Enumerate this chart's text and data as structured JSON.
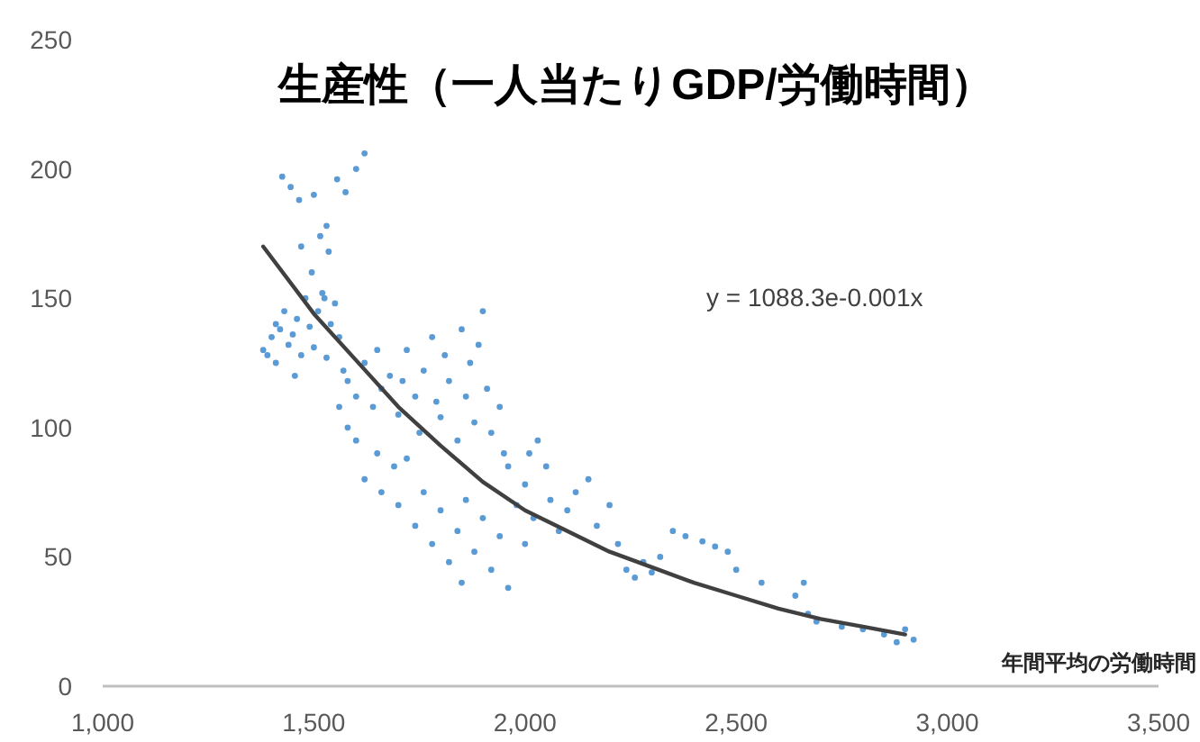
{
  "chart_data": {
    "type": "scatter",
    "title": "生産性（一人当たりGDP/労働時間）",
    "xlabel": "年間平均の労働時間",
    "annotations": [
      "y = 1088.3e-0.001x"
    ],
    "xlim": [
      1000,
      3500
    ],
    "xticks": [
      {
        "value": 1000,
        "label": "1,000"
      },
      {
        "value": 1500,
        "label": "1,500"
      },
      {
        "value": 2000,
        "label": "2,000"
      },
      {
        "value": 2500,
        "label": "2,500"
      },
      {
        "value": 3000,
        "label": "3,000"
      },
      {
        "value": 3500,
        "label": "3,500"
      }
    ],
    "ylim": [
      0,
      250
    ],
    "yticks": [
      0,
      50,
      100,
      150,
      200,
      250
    ],
    "grid": false,
    "series": [
      {
        "marker": "circle",
        "color": "#5b9bd5",
        "x": [
          1380,
          1390,
          1400,
          1410,
          1420,
          1430,
          1440,
          1450,
          1460,
          1470,
          1480,
          1490,
          1500,
          1510,
          1520,
          1530,
          1540,
          1550,
          1560,
          1570,
          1425,
          1445,
          1465,
          1500,
          1530,
          1555,
          1575,
          1600,
          1620,
          1470,
          1495,
          1515,
          1535,
          1525,
          1455,
          1410,
          1580,
          1600,
          1620,
          1640,
          1650,
          1660,
          1680,
          1700,
          1710,
          1720,
          1740,
          1750,
          1760,
          1780,
          1790,
          1800,
          1810,
          1820,
          1840,
          1850,
          1860,
          1870,
          1880,
          1890,
          1900,
          1910,
          1920,
          1940,
          1950,
          1960,
          1600,
          1620,
          1650,
          1660,
          1690,
          1700,
          1720,
          1740,
          1760,
          1780,
          1800,
          1820,
          1840,
          1850,
          1860,
          1880,
          1900,
          1920,
          1940,
          1960,
          1980,
          2000,
          2000,
          2020,
          2050,
          2060,
          2080,
          2100,
          2120,
          2150,
          2170,
          2200,
          2220,
          2240,
          2260,
          2280,
          2300,
          2320,
          2350,
          2380,
          2420,
          2450,
          2480,
          2500,
          2560,
          2640,
          2660,
          2670,
          2690,
          2750,
          2800,
          2850,
          2880,
          2900,
          2920,
          2010,
          2030,
          1560,
          1580
        ],
        "values": [
          130,
          128,
          135,
          140,
          138,
          145,
          132,
          136,
          142,
          128,
          150,
          139,
          131,
          145,
          152,
          127,
          140,
          148,
          135,
          122,
          197,
          193,
          188,
          190,
          178,
          196,
          191,
          200,
          206,
          170,
          160,
          174,
          168,
          150,
          120,
          125,
          118,
          112,
          125,
          108,
          130,
          115,
          120,
          105,
          118,
          130,
          112,
          98,
          122,
          135,
          110,
          104,
          128,
          118,
          95,
          138,
          112,
          125,
          102,
          132,
          145,
          115,
          98,
          108,
          90,
          85,
          95,
          80,
          90,
          75,
          85,
          70,
          88,
          62,
          75,
          55,
          68,
          48,
          60,
          40,
          72,
          52,
          65,
          45,
          58,
          38,
          70,
          78,
          55,
          65,
          85,
          72,
          60,
          68,
          75,
          80,
          62,
          70,
          55,
          45,
          42,
          48,
          44,
          50,
          60,
          58,
          56,
          54,
          52,
          45,
          40,
          35,
          40,
          28,
          25,
          23,
          22,
          20,
          17,
          22,
          18,
          90,
          95,
          108,
          100
        ]
      },
      {
        "type": "line",
        "color": "#404040",
        "x": [
          1380,
          1500,
          1600,
          1700,
          1800,
          1900,
          2000,
          2100,
          2200,
          2300,
          2400,
          2500,
          2600,
          2700,
          2800,
          2900
        ],
        "values": [
          170,
          144,
          126,
          108,
          93,
          79,
          68,
          60,
          52,
          46,
          40,
          35,
          30,
          26,
          23,
          20
        ]
      }
    ]
  }
}
